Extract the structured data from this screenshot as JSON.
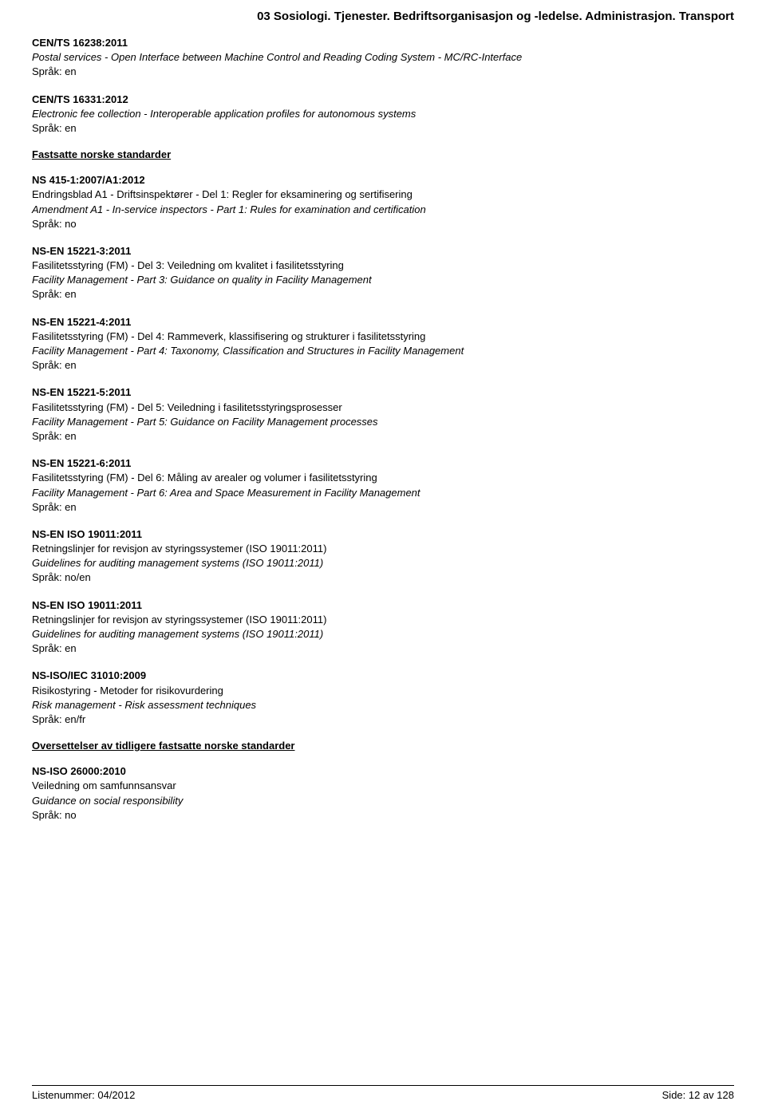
{
  "header": {
    "title": "03  Sosiologi. Tjenester. Bedriftsorganisasjon og -ledelse. Administrasjon. Transport"
  },
  "entries": [
    {
      "code": "CEN/TS 16238:2011",
      "title_it": "Postal services - Open Interface between Machine Control and Reading Coding System - MC/RC-Interface",
      "lang": "Språk: en"
    },
    {
      "code": "CEN/TS 16331:2012",
      "title_it": "Electronic fee collection - Interoperable application profiles for autonomous systems",
      "lang": "Språk: en"
    }
  ],
  "section1": {
    "heading": "Fastsatte norske standarder"
  },
  "entries2": [
    {
      "code": "NS 415-1:2007/A1:2012",
      "title_no": "Endringsblad A1 - Driftsinspektører - Del 1: Regler for eksaminering og sertifisering",
      "title_it": "Amendment A1 - In-service inspectors - Part 1: Rules for examination and certification",
      "lang": "Språk: no"
    },
    {
      "code": "NS-EN 15221-3:2011",
      "title_no": "Fasilitetsstyring (FM) - Del 3: Veiledning om kvalitet i fasilitetsstyring",
      "title_it": "Facility Management - Part 3: Guidance on quality in Facility Management",
      "lang": "Språk: en"
    },
    {
      "code": "NS-EN 15221-4:2011",
      "title_no": "Fasilitetsstyring (FM) - Del 4: Rammeverk, klassifisering og strukturer i fasilitetsstyring",
      "title_it": "Facility Management - Part 4: Taxonomy, Classification and Structures in Facility Management",
      "lang": "Språk: en"
    },
    {
      "code": "NS-EN 15221-5:2011",
      "title_no": "Fasilitetsstyring (FM) - Del 5: Veiledning i fasilitetsstyringsprosesser",
      "title_it": "Facility Management - Part 5: Guidance on Facility Management processes",
      "lang": "Språk: en"
    },
    {
      "code": "NS-EN 15221-6:2011",
      "title_no": "Fasilitetsstyring (FM) - Del 6: Måling av arealer og volumer i fasilitetsstyring",
      "title_it": "Facility Management - Part 6: Area and Space Measurement in Facility Management",
      "lang": "Språk: en"
    },
    {
      "code": "NS-EN ISO 19011:2011",
      "title_no": "Retningslinjer for revisjon av styringssystemer (ISO 19011:2011)",
      "title_it": "Guidelines for auditing management systems (ISO 19011:2011)",
      "lang": "Språk: no/en"
    },
    {
      "code": "NS-EN ISO 19011:2011",
      "title_no": "Retningslinjer for revisjon av styringssystemer (ISO 19011:2011)",
      "title_it": "Guidelines for auditing management systems (ISO 19011:2011)",
      "lang": "Språk: en"
    },
    {
      "code": "NS-ISO/IEC 31010:2009",
      "title_no": "Risikostyring - Metoder for risikovurdering",
      "title_it": "Risk management - Risk assessment techniques",
      "lang": "Språk: en/fr"
    }
  ],
  "section2": {
    "heading": "Oversettelser av tidligere fastsatte norske standarder"
  },
  "entries3": [
    {
      "code": "NS-ISO 26000:2010",
      "title_no": "Veiledning om samfunnsansvar",
      "title_it": "Guidance on social responsibility",
      "lang": "Språk: no"
    }
  ],
  "footer": {
    "left": "Listenummer: 04/2012",
    "right": "Side: 12 av 128"
  }
}
